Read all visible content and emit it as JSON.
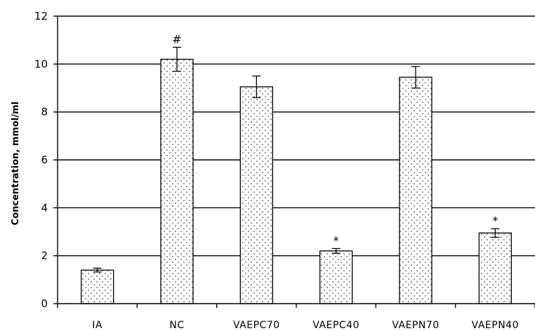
{
  "chart_data": {
    "type": "bar",
    "title": "",
    "xlabel": "",
    "ylabel": "Concentration, mmol/ml",
    "ylim": [
      0,
      12
    ],
    "yticks": [
      "0",
      "2",
      "4",
      "6",
      "8",
      "10",
      "12"
    ],
    "grid": true,
    "categories": [
      "IA",
      "NC",
      "VAEPC70",
      "VAEPC40",
      "VAEPN70",
      "VAEPN40"
    ],
    "values": [
      1.4,
      10.2,
      9.05,
      2.2,
      9.45,
      2.95
    ],
    "errors": [
      0.08,
      0.5,
      0.45,
      0.1,
      0.45,
      0.18
    ],
    "annotations": [
      "",
      "#",
      "",
      "*",
      "",
      "*"
    ],
    "bar_fill": "dotted"
  }
}
